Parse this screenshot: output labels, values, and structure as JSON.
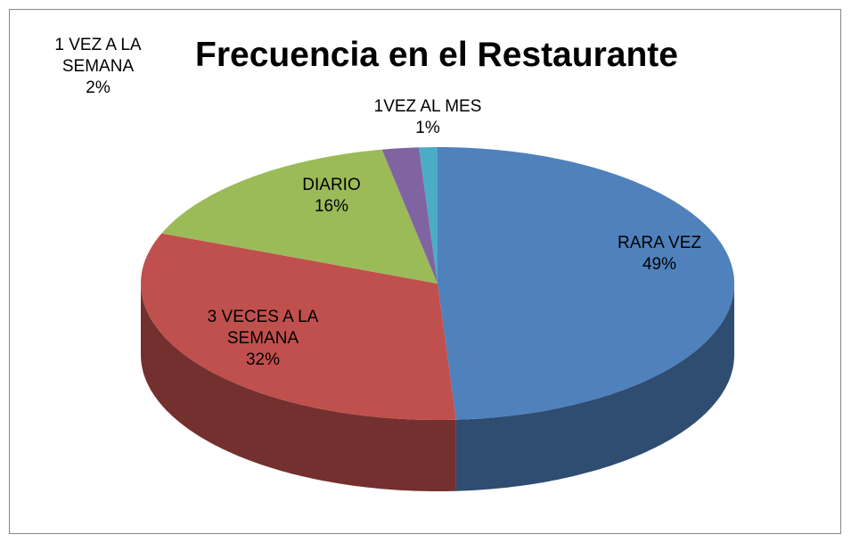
{
  "chart_data": {
    "type": "pie3d",
    "title": "Frecuencia en el Restaurante",
    "categories": [
      "RARA VEZ",
      "3 VECES A LA SEMANA",
      "DIARIO",
      "1 VEZ A LA SEMANA",
      "1VEZ AL MES"
    ],
    "values": [
      49,
      32,
      16,
      2,
      1
    ],
    "value_labels": [
      "49%",
      "32%",
      "16%",
      "2%",
      "1%"
    ],
    "colors": [
      "#4f81bd",
      "#c0504d",
      "#9bbb59",
      "#8064a2",
      "#4bacc6"
    ]
  }
}
